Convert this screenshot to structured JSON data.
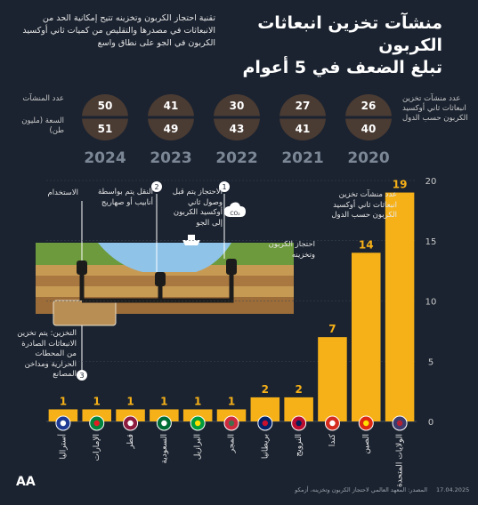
{
  "header": {
    "title_line1": "منشآت تخزين انبعاثات الكربون",
    "title_line2": "تبلغ الضعف في 5 أعوام",
    "subtitle": "تقنية احتجاز الكربون وتخزينه تتيح إمكانية الحد من الانبعاثات في مصدرها والتقليص من كميات ثاني أوكسيد الكربون في الجو على نطاق واسع"
  },
  "yearly": {
    "label_facilities": "عدد المنشآت",
    "label_capacity": "السعة (مليون طن)",
    "label_countries": "عدد منشآت تخزين انبعاثات ثاني أوكسيد الكربون حسب الدول",
    "items": [
      {
        "year": "2024",
        "facilities": "50",
        "capacity": "51"
      },
      {
        "year": "2023",
        "facilities": "41",
        "capacity": "49"
      },
      {
        "year": "2022",
        "facilities": "30",
        "capacity": "43"
      },
      {
        "year": "2021",
        "facilities": "27",
        "capacity": "41"
      },
      {
        "year": "2020",
        "facilities": "26",
        "capacity": "40"
      }
    ]
  },
  "diagram": {
    "step1_num": "1",
    "step1": "الاحتجاز يتم قبل وصول ثاني أوكسيد الكربون إلى الجو",
    "step2_num": "2",
    "step2": "النقل يتم بواسطة أنابيب أو صهاريج",
    "step3_num": "3",
    "step3": "التخزين: يتم تخزين الانبعاثات الصادرة من المحطات الحرارية ومداخن المصانع",
    "usage": "الاستخدام",
    "ccs": "احتجاز الكربون وتخزينه",
    "co2": "CO₂"
  },
  "chart_note": "عدد منشآت تخزين انبعاثات ثاني أوكسيد الكربون حسب الدول",
  "colors": {
    "bar": "#f7b118",
    "background": "#1b2330",
    "grid": "#3a4453"
  },
  "chart_data": {
    "type": "bar",
    "title": "",
    "categories": [
      "أستراليا",
      "الإمارات",
      "قطر",
      "السعودية",
      "البرازيل",
      "المجر",
      "بريطانيا",
      "النرويج",
      "كندا",
      "الصين",
      "الولايات المتحدة"
    ],
    "flags": [
      "australia",
      "uae",
      "qatar",
      "saudi-arabia",
      "brazil",
      "hungary",
      "uk",
      "norway",
      "canada",
      "china",
      "usa"
    ],
    "values": [
      1,
      1,
      1,
      1,
      1,
      1,
      2,
      2,
      7,
      14,
      19
    ],
    "ylim": [
      0,
      20
    ],
    "yticks": [
      0,
      5,
      10,
      15,
      20
    ],
    "grid": true
  },
  "footer": {
    "date": "17.04.2025",
    "source": "المصدر: المعهد العالمي لاحتجاز الكربون وتخزينه، أزمكو",
    "logo": "AA"
  }
}
